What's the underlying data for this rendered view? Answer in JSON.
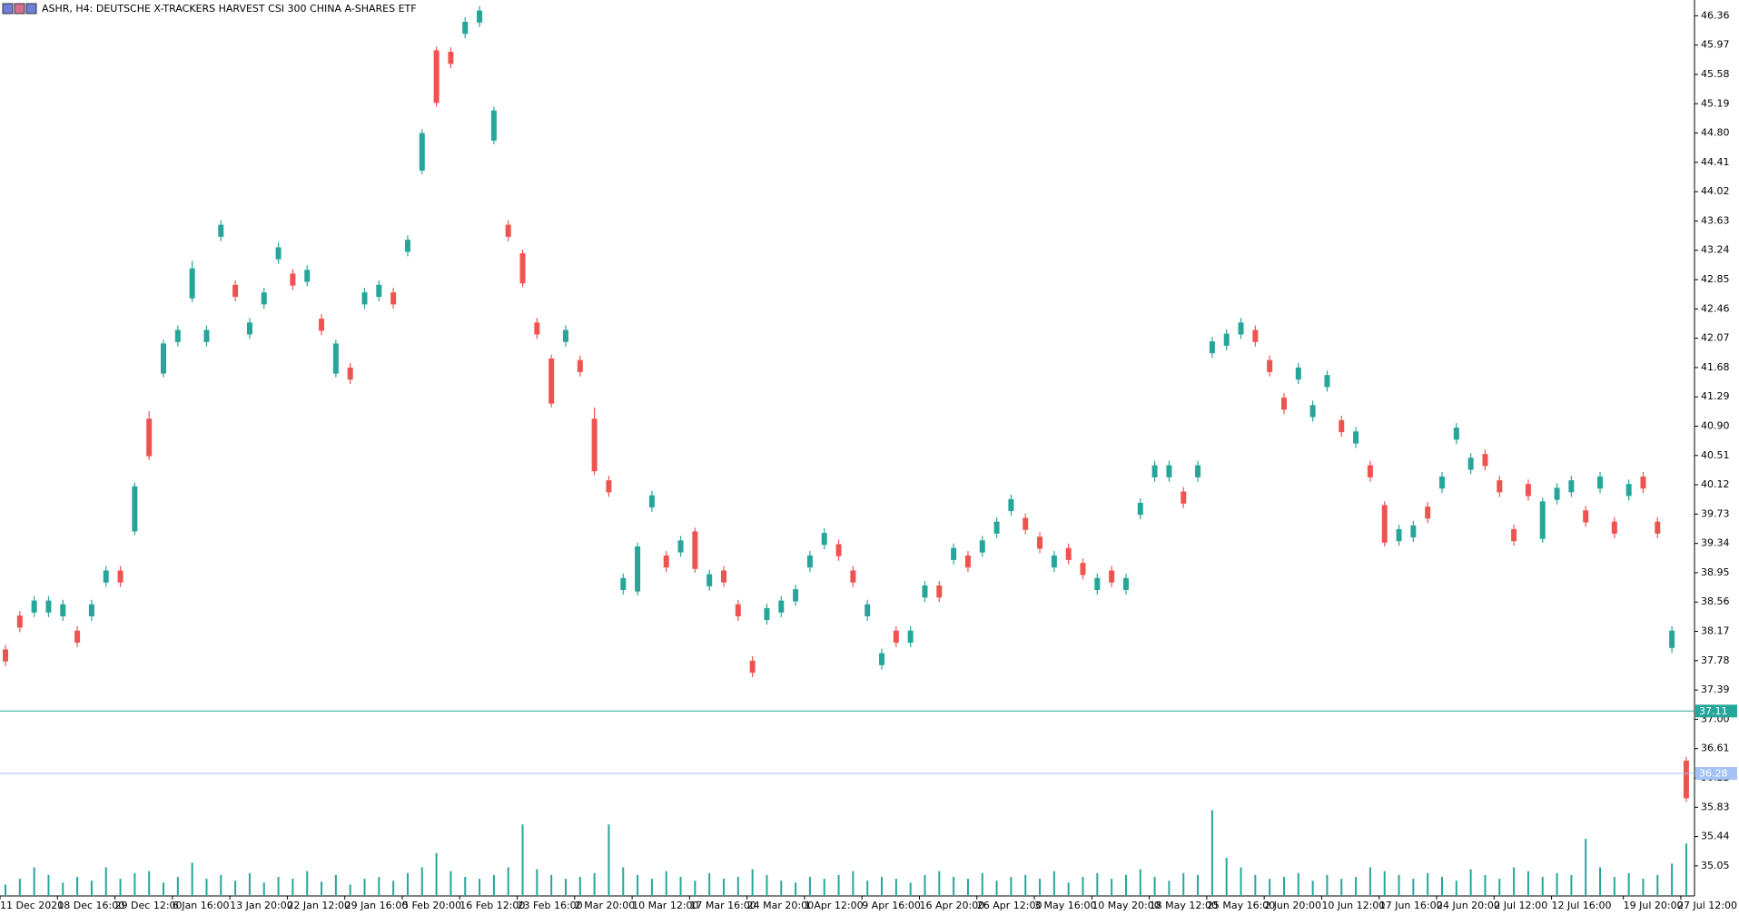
{
  "chart_data": {
    "type": "candlestick",
    "title": "ASHR, H4:  DEUTSCHE X-TRACKERS HARVEST CSI 300 CHINA A-SHARES ETF",
    "categories": [
      "11 Dec 2020",
      null,
      null,
      null,
      "18 Dec 16:00",
      null,
      null,
      null,
      "29 Dec 12:00",
      null,
      null,
      null,
      "6 Jan 16:00",
      null,
      null,
      null,
      "13 Jan 20:00",
      null,
      null,
      null,
      "22 Jan 12:00",
      null,
      null,
      null,
      "29 Jan 16:00",
      null,
      null,
      null,
      "5 Feb 20:00",
      null,
      null,
      null,
      "16 Feb 12:00",
      null,
      null,
      null,
      "23 Feb 16:00",
      null,
      null,
      null,
      "2 Mar 20:00",
      null,
      null,
      null,
      "10 Mar 12:00",
      null,
      null,
      null,
      "17 Mar 16:00",
      null,
      null,
      null,
      "24 Mar 20:00",
      null,
      null,
      null,
      "1 Apr 12:00",
      null,
      null,
      null,
      "9 Apr 16:00",
      null,
      null,
      null,
      "16 Apr 20:00",
      null,
      null,
      null,
      "26 Apr 12:00",
      null,
      null,
      null,
      "3 May 16:00",
      null,
      null,
      null,
      "10 May 20:00",
      null,
      null,
      null,
      "18 May 12:00",
      null,
      null,
      null,
      "25 May 16:00",
      null,
      null,
      null,
      "2 Jun 20:00",
      null,
      null,
      null,
      "10 Jun 12:00",
      null,
      null,
      null,
      "17 Jun 16:00",
      null,
      null,
      null,
      "24 Jun 20:00",
      null,
      null,
      null,
      "2 Jul 12:00",
      null,
      null,
      null,
      "12 Jul 16:00",
      null,
      null,
      null,
      null,
      "19 Jul 20:00",
      null,
      null,
      null,
      "27 Jul 12:00"
    ],
    "open": [
      37.93,
      38.38,
      38.42,
      38.42,
      38.37,
      38.18,
      38.37,
      38.82,
      38.98,
      39.5,
      41.0,
      41.6,
      42.02,
      42.6,
      42.02,
      43.42,
      42.78,
      42.12,
      42.52,
      43.12,
      42.93,
      42.82,
      42.33,
      41.6,
      41.68,
      42.52,
      42.62,
      42.68,
      43.22,
      44.3,
      45.9,
      45.88,
      46.12,
      46.27,
      44.7,
      43.58,
      43.2,
      42.28,
      41.8,
      42.02,
      41.78,
      41.0,
      40.18,
      38.72,
      38.7,
      39.82,
      39.18,
      39.22,
      39.5,
      38.77,
      38.98,
      38.53,
      37.78,
      38.32,
      38.42,
      38.57,
      39.02,
      39.32,
      39.33,
      38.98,
      38.37,
      37.72,
      38.18,
      38.02,
      38.62,
      38.78,
      39.12,
      39.18,
      39.22,
      39.47,
      39.77,
      39.68,
      39.43,
      39.02,
      39.28,
      39.08,
      38.72,
      38.98,
      38.72,
      39.72,
      40.22,
      40.22,
      40.03,
      40.22,
      41.87,
      41.97,
      42.12,
      42.18,
      41.78,
      41.28,
      41.52,
      41.02,
      41.42,
      40.98,
      40.67,
      40.38,
      39.85,
      39.37,
      39.42,
      39.83,
      40.07,
      40.72,
      40.32,
      40.53,
      40.18,
      39.53,
      40.13,
      39.4,
      39.92,
      40.02,
      39.78,
      40.07,
      39.63,
      39.97,
      40.23,
      39.63,
      37.95,
      36.45
    ],
    "high": [
      37.99,
      38.44,
      38.64,
      38.64,
      38.59,
      38.24,
      38.59,
      39.04,
      39.04,
      40.15,
      41.1,
      42.05,
      42.24,
      43.1,
      42.24,
      43.64,
      42.84,
      42.34,
      42.74,
      43.34,
      42.99,
      43.04,
      42.39,
      42.05,
      41.74,
      42.74,
      42.84,
      42.74,
      43.44,
      44.85,
      45.95,
      45.94,
      46.34,
      46.49,
      45.15,
      43.64,
      43.25,
      42.34,
      41.85,
      42.24,
      41.84,
      41.15,
      40.24,
      38.94,
      39.35,
      40.04,
      39.24,
      39.44,
      39.55,
      38.99,
      39.04,
      38.59,
      37.84,
      38.54,
      38.64,
      38.79,
      39.24,
      39.54,
      39.39,
      39.04,
      38.59,
      37.94,
      38.24,
      38.24,
      38.84,
      38.84,
      39.34,
      39.24,
      39.44,
      39.69,
      39.99,
      39.74,
      39.49,
      39.24,
      39.34,
      39.14,
      38.94,
      39.04,
      38.94,
      39.94,
      40.44,
      40.44,
      40.09,
      40.44,
      42.09,
      42.19,
      42.34,
      42.24,
      41.84,
      41.34,
      41.74,
      41.24,
      41.64,
      41.04,
      40.89,
      40.44,
      39.9,
      39.59,
      39.64,
      39.89,
      40.29,
      40.94,
      40.54,
      40.59,
      40.24,
      39.59,
      40.19,
      39.95,
      40.14,
      40.24,
      39.84,
      40.29,
      39.69,
      40.19,
      40.29,
      39.69,
      38.24,
      36.5
    ],
    "low": [
      37.71,
      38.16,
      38.36,
      38.36,
      38.31,
      37.96,
      38.31,
      38.76,
      38.76,
      39.45,
      40.45,
      41.55,
      41.96,
      42.55,
      41.96,
      43.36,
      42.56,
      42.06,
      42.46,
      43.06,
      42.71,
      42.76,
      42.11,
      41.55,
      41.46,
      42.46,
      42.56,
      42.46,
      43.16,
      44.25,
      45.15,
      45.66,
      46.06,
      46.21,
      44.65,
      43.36,
      42.75,
      42.06,
      41.15,
      41.96,
      41.56,
      40.25,
      39.96,
      38.66,
      38.65,
      39.76,
      38.96,
      39.16,
      38.95,
      38.71,
      38.76,
      38.31,
      37.56,
      38.26,
      38.36,
      38.51,
      38.96,
      39.26,
      39.11,
      38.76,
      38.31,
      37.66,
      37.96,
      37.96,
      38.56,
      38.56,
      39.06,
      38.96,
      39.16,
      39.41,
      39.71,
      39.46,
      39.21,
      38.96,
      39.06,
      38.86,
      38.66,
      38.76,
      38.66,
      39.66,
      40.16,
      40.16,
      39.81,
      40.16,
      41.81,
      41.91,
      42.06,
      41.96,
      41.56,
      41.06,
      41.46,
      40.96,
      41.36,
      40.76,
      40.61,
      40.16,
      39.3,
      39.31,
      39.36,
      39.61,
      40.01,
      40.66,
      40.26,
      40.31,
      39.96,
      39.31,
      39.91,
      39.35,
      39.86,
      39.96,
      39.56,
      40.01,
      39.41,
      39.91,
      40.01,
      39.41,
      37.88,
      35.9
    ],
    "close": [
      37.77,
      38.22,
      38.58,
      38.58,
      38.53,
      38.02,
      38.53,
      38.98,
      38.82,
      40.1,
      40.5,
      42.0,
      42.18,
      43.0,
      42.18,
      43.58,
      42.62,
      42.28,
      42.68,
      43.28,
      42.77,
      42.98,
      42.17,
      42.0,
      41.52,
      42.68,
      42.78,
      42.52,
      43.38,
      44.8,
      45.2,
      45.72,
      46.28,
      46.43,
      45.1,
      43.42,
      42.8,
      42.12,
      41.2,
      42.18,
      41.62,
      40.3,
      40.02,
      38.88,
      39.3,
      39.98,
      39.02,
      39.38,
      39.0,
      38.93,
      38.82,
      38.37,
      37.62,
      38.48,
      38.58,
      38.73,
      39.18,
      39.48,
      39.17,
      38.82,
      38.53,
      37.88,
      38.02,
      38.18,
      38.78,
      38.62,
      39.28,
      39.02,
      39.38,
      39.63,
      39.93,
      39.52,
      39.27,
      39.18,
      39.12,
      38.92,
      38.88,
      38.82,
      38.88,
      39.88,
      40.38,
      40.38,
      39.87,
      40.38,
      42.03,
      42.13,
      42.28,
      42.02,
      41.62,
      41.12,
      41.68,
      41.18,
      41.58,
      40.82,
      40.83,
      40.22,
      39.35,
      39.53,
      39.58,
      39.67,
      40.23,
      40.88,
      40.48,
      40.37,
      40.02,
      39.37,
      39.97,
      39.9,
      40.08,
      40.18,
      39.62,
      40.23,
      39.47,
      40.13,
      40.07,
      39.47,
      38.18,
      35.95
    ],
    "volumes": [
      12,
      18,
      30,
      22,
      14,
      20,
      16,
      30,
      18,
      24,
      26,
      14,
      20,
      35,
      18,
      22,
      16,
      24,
      14,
      20,
      18,
      26,
      15,
      22,
      12,
      18,
      20,
      16,
      24,
      30,
      45,
      26,
      20,
      18,
      22,
      30,
      75,
      28,
      22,
      18,
      20,
      24,
      75,
      30,
      22,
      18,
      26,
      20,
      16,
      24,
      18,
      20,
      28,
      22,
      16,
      14,
      20,
      18,
      22,
      26,
      16,
      20,
      18,
      14,
      22,
      26,
      20,
      18,
      24,
      16,
      20,
      22,
      18,
      26,
      14,
      20,
      24,
      18,
      22,
      28,
      20,
      16,
      24,
      22,
      90,
      40,
      30,
      22,
      18,
      20,
      24,
      16,
      22,
      18,
      20,
      30,
      26,
      22,
      18,
      24,
      20,
      16,
      28,
      22,
      18,
      30,
      26,
      20,
      24,
      22,
      60,
      30,
      20,
      24,
      18,
      22,
      34,
      55
    ],
    "up_color": "#26a69a",
    "down_color": "#ef5350",
    "volume_color": "#26a69a",
    "hlines": [
      {
        "value": 37.11,
        "color": "#26a69a"
      },
      {
        "value": 36.28,
        "color": "#a4c2f4"
      }
    ],
    "ylim": [
      34.65,
      46.57
    ],
    "yticks": [
      46.36,
      45.97,
      45.58,
      45.19,
      {
        "value": 44.8,
        "label": "44.80"
      },
      44.41,
      44.02,
      43.63,
      43.24,
      42.85,
      42.46,
      42.07,
      41.68,
      41.29,
      {
        "value": 40.9,
        "label": "40.90"
      },
      40.51,
      40.12,
      39.73,
      39.34,
      38.95,
      38.56,
      38.17,
      37.78,
      37.39,
      {
        "value": 37,
        "label": "37.00"
      },
      36.61,
      36.22,
      35.83,
      35.44,
      35.05
    ]
  }
}
